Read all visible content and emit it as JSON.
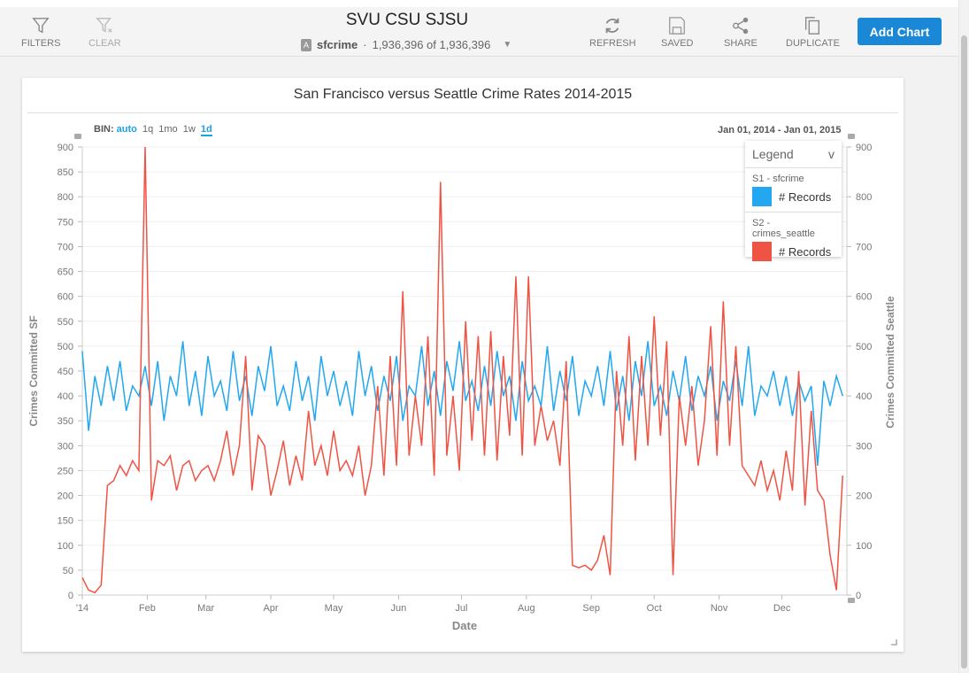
{
  "toolbar": {
    "filters": "FILTERS",
    "clear": "CLEAR",
    "title": "SVU CSU SJSU",
    "dataset": "sfcrime",
    "count": "1,936,396 of 1,936,396",
    "refresh": "REFRESH",
    "saved": "SAVED",
    "share": "SHARE",
    "duplicate": "DUPLICATE",
    "add_chart": "Add Chart"
  },
  "chart": {
    "title": "San Francisco versus Seattle Crime Rates 2014-2015",
    "bin_label": "BIN:",
    "bins": [
      "auto",
      "1q",
      "1mo",
      "1w",
      "1d"
    ],
    "range_start": "Jan 01, 2014",
    "range_sep": "-",
    "range_end": "Jan 01, 2015",
    "legend": {
      "title": "Legend",
      "toggle": "v",
      "groups": [
        {
          "name": "S1 - sfcrime",
          "label": "# Records",
          "color": "#22a7f0"
        },
        {
          "name": "S2 - crimes_seattle",
          "label": "# Records",
          "color": "#ef5343"
        }
      ]
    }
  },
  "chart_data": {
    "type": "line",
    "title": "San Francisco versus Seattle Crime Rates 2014-2015",
    "xlabel": "Date",
    "ylabel": "Crimes Committed SF",
    "y2label": "Crimes Committed Seattle",
    "x_ticks": [
      "'14",
      "Feb",
      "Mar",
      "Apr",
      "May",
      "Jun",
      "Jul",
      "Aug",
      "Sep",
      "Oct",
      "Nov",
      "Dec"
    ],
    "x_tick_days": [
      0,
      31,
      59,
      90,
      120,
      151,
      181,
      212,
      243,
      273,
      304,
      334
    ],
    "y_ticks": [
      0,
      50,
      100,
      150,
      200,
      250,
      300,
      350,
      400,
      450,
      500,
      550,
      600,
      650,
      700,
      750,
      800,
      850,
      900
    ],
    "y2_ticks": [
      0,
      100,
      200,
      300,
      400,
      500,
      600,
      700,
      800,
      900
    ],
    "ylim": [
      0,
      900
    ],
    "y2lim": [
      0,
      900
    ],
    "x_days_total": 365,
    "step_days": 3,
    "series": [
      {
        "name": "S1 - sfcrime",
        "axis": "left",
        "color": "#22a7f0",
        "values": [
          490,
          330,
          440,
          380,
          460,
          390,
          470,
          370,
          420,
          400,
          460,
          380,
          470,
          350,
          440,
          400,
          510,
          380,
          450,
          360,
          480,
          400,
          430,
          370,
          490,
          390,
          440,
          360,
          460,
          410,
          500,
          380,
          420,
          370,
          470,
          390,
          440,
          350,
          480,
          400,
          450,
          380,
          430,
          360,
          490,
          400,
          460,
          370,
          440,
          390,
          480,
          350,
          420,
          400,
          500,
          380,
          450,
          360,
          470,
          410,
          510,
          390,
          430,
          370,
          460,
          380,
          490,
          400,
          440,
          350,
          470,
          390,
          420,
          380,
          500,
          370,
          450,
          390,
          480,
          360,
          430,
          400,
          460,
          380,
          490,
          370,
          440,
          350,
          470,
          400,
          510,
          380,
          420,
          360,
          450,
          390,
          480,
          370,
          440,
          400,
          460,
          350,
          430,
          390,
          470,
          380,
          500,
          360,
          420,
          400,
          450,
          380,
          440,
          360,
          430,
          390,
          420,
          260,
          430,
          380,
          440,
          400
        ]
      },
      {
        "name": "S2 - crimes_seattle",
        "axis": "right",
        "color": "#ef5343",
        "values": [
          35,
          10,
          5,
          20,
          220,
          230,
          260,
          240,
          270,
          250,
          900,
          190,
          270,
          260,
          280,
          210,
          260,
          270,
          230,
          250,
          260,
          230,
          270,
          330,
          240,
          300,
          480,
          210,
          320,
          300,
          200,
          250,
          310,
          220,
          280,
          230,
          370,
          260,
          300,
          240,
          330,
          250,
          270,
          240,
          300,
          200,
          260,
          420,
          240,
          480,
          260,
          610,
          280,
          400,
          300,
          520,
          240,
          830,
          280,
          400,
          250,
          550,
          310,
          520,
          280,
          530,
          270,
          480,
          320,
          640,
          280,
          640,
          300,
          380,
          310,
          350,
          260,
          470,
          60,
          55,
          60,
          50,
          70,
          120,
          40,
          450,
          300,
          520,
          270,
          480,
          300,
          560,
          320,
          510,
          40,
          400,
          300,
          420,
          260,
          350,
          540,
          280,
          590,
          300,
          500,
          260,
          240,
          220,
          270,
          210,
          250,
          190,
          290,
          210,
          450,
          180,
          370,
          210,
          190,
          80,
          10,
          240
        ]
      }
    ]
  }
}
